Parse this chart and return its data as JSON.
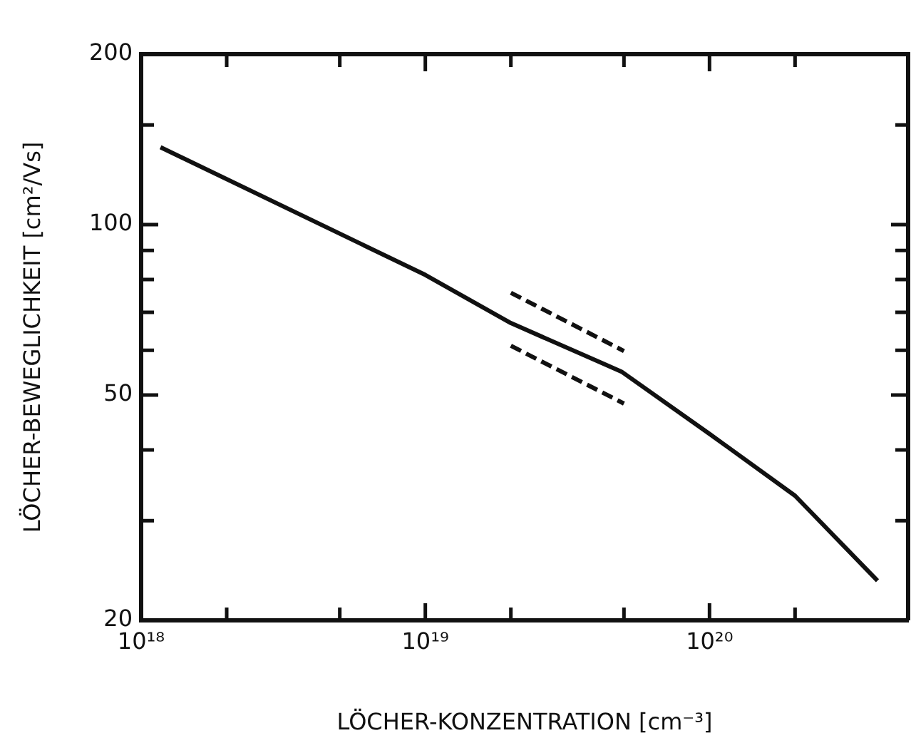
{
  "chart_data": {
    "type": "line",
    "xlabel": "LÖCHER-KONZENTRATION [cm⁻³]",
    "ylabel": "LÖCHER-BEWEGLICHKEIT [cm²/Vs]",
    "log": "xy",
    "grid": false,
    "legend": false,
    "marker": "none",
    "xlim": [
      1e+18,
      5e+20
    ],
    "xticks": [
      {
        "value": 1e+18,
        "label": "10¹⁸"
      },
      {
        "value": 2e+18,
        "label": null
      },
      {
        "value": 5e+18,
        "label": null
      },
      {
        "value": 1e+19,
        "label": "10¹⁹"
      },
      {
        "value": 2e+19,
        "label": null
      },
      {
        "value": 5e+19,
        "label": null
      },
      {
        "value": 1e+20,
        "label": "10²⁰"
      },
      {
        "value": 2e+20,
        "label": null
      }
    ],
    "ylim": [
      20,
      200
    ],
    "yticks": [
      20,
      {
        "value": 30,
        "label": null
      },
      {
        "value": 40,
        "label": null
      },
      50,
      {
        "value": 60,
        "label": null
      },
      {
        "value": 70,
        "label": null
      },
      {
        "value": 80,
        "label": null
      },
      {
        "value": 90,
        "label": null
      },
      100,
      {
        "value": 150,
        "label": null
      },
      200
    ],
    "series": [
      {
        "color": "#111111",
        "line_style": "solid",
        "x": [
          1.17e+18,
          1e+19,
          2e+19,
          4.9e+19,
          1e+20,
          2e+20,
          3.9e+20
        ],
        "values": [
          137,
          81.5,
          67,
          55,
          42.7,
          33.2,
          23.5
        ]
      },
      {
        "color": "#111111",
        "line_style": "dashed",
        "x": [
          2e+19,
          5e+19
        ],
        "values": [
          75.8,
          59.8
        ]
      },
      {
        "color": "#111111",
        "line_style": "dashed",
        "x": [
          2e+19,
          5e+19
        ],
        "values": [
          61.1,
          48.3
        ]
      }
    ]
  }
}
